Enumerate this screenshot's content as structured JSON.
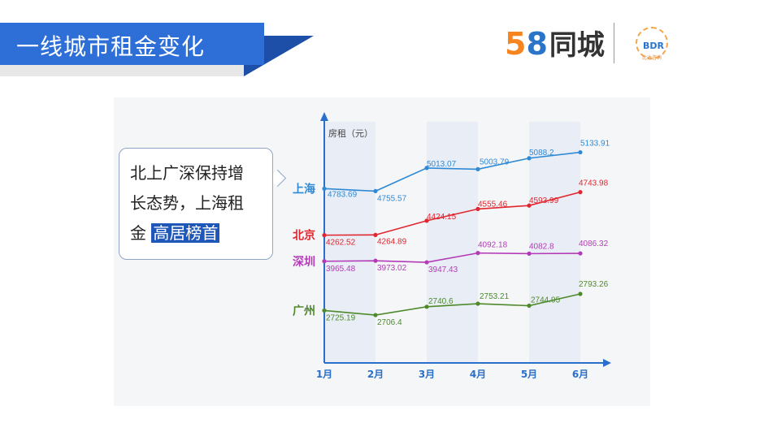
{
  "header": {
    "title": "一线城市租金变化",
    "logo_digit_5": "5",
    "logo_digit_8": "8",
    "logo_text": "同城",
    "bdr_logo": "BDR",
    "bdr_subtitle": "比达咨询"
  },
  "callout": {
    "line1": "北上广深保持增",
    "line2": "长态势，上海租",
    "line3_prefix": "金",
    "highlight": "高居榜首",
    "highlight_color": "#1f57b8"
  },
  "chart_data": {
    "type": "line",
    "ylabel": "房租（元）",
    "categories": [
      "1月",
      "2月",
      "3月",
      "4月",
      "5月",
      "6月"
    ],
    "series": [
      {
        "name": "上海",
        "color": "#2f8ad6",
        "values": [
          4783.69,
          4755.57,
          5013.07,
          5003.79,
          5088.2,
          5133.91
        ]
      },
      {
        "name": "北京",
        "color": "#e0262e",
        "values": [
          4262.52,
          4264.89,
          4424.15,
          4555.46,
          4593.99,
          4743.98
        ]
      },
      {
        "name": "深圳",
        "color": "#b43bb8",
        "values": [
          3965.48,
          3973.02,
          3947.43,
          4092.18,
          4082.8,
          4086.32
        ]
      },
      {
        "name": "广州",
        "color": "#4e8a2c",
        "values": [
          2725.19,
          2706.4,
          2740.6,
          2753.21,
          2744.95,
          2793.26
        ]
      }
    ],
    "axis_color": "#2a6fc9",
    "grid": false,
    "legend": "left"
  }
}
